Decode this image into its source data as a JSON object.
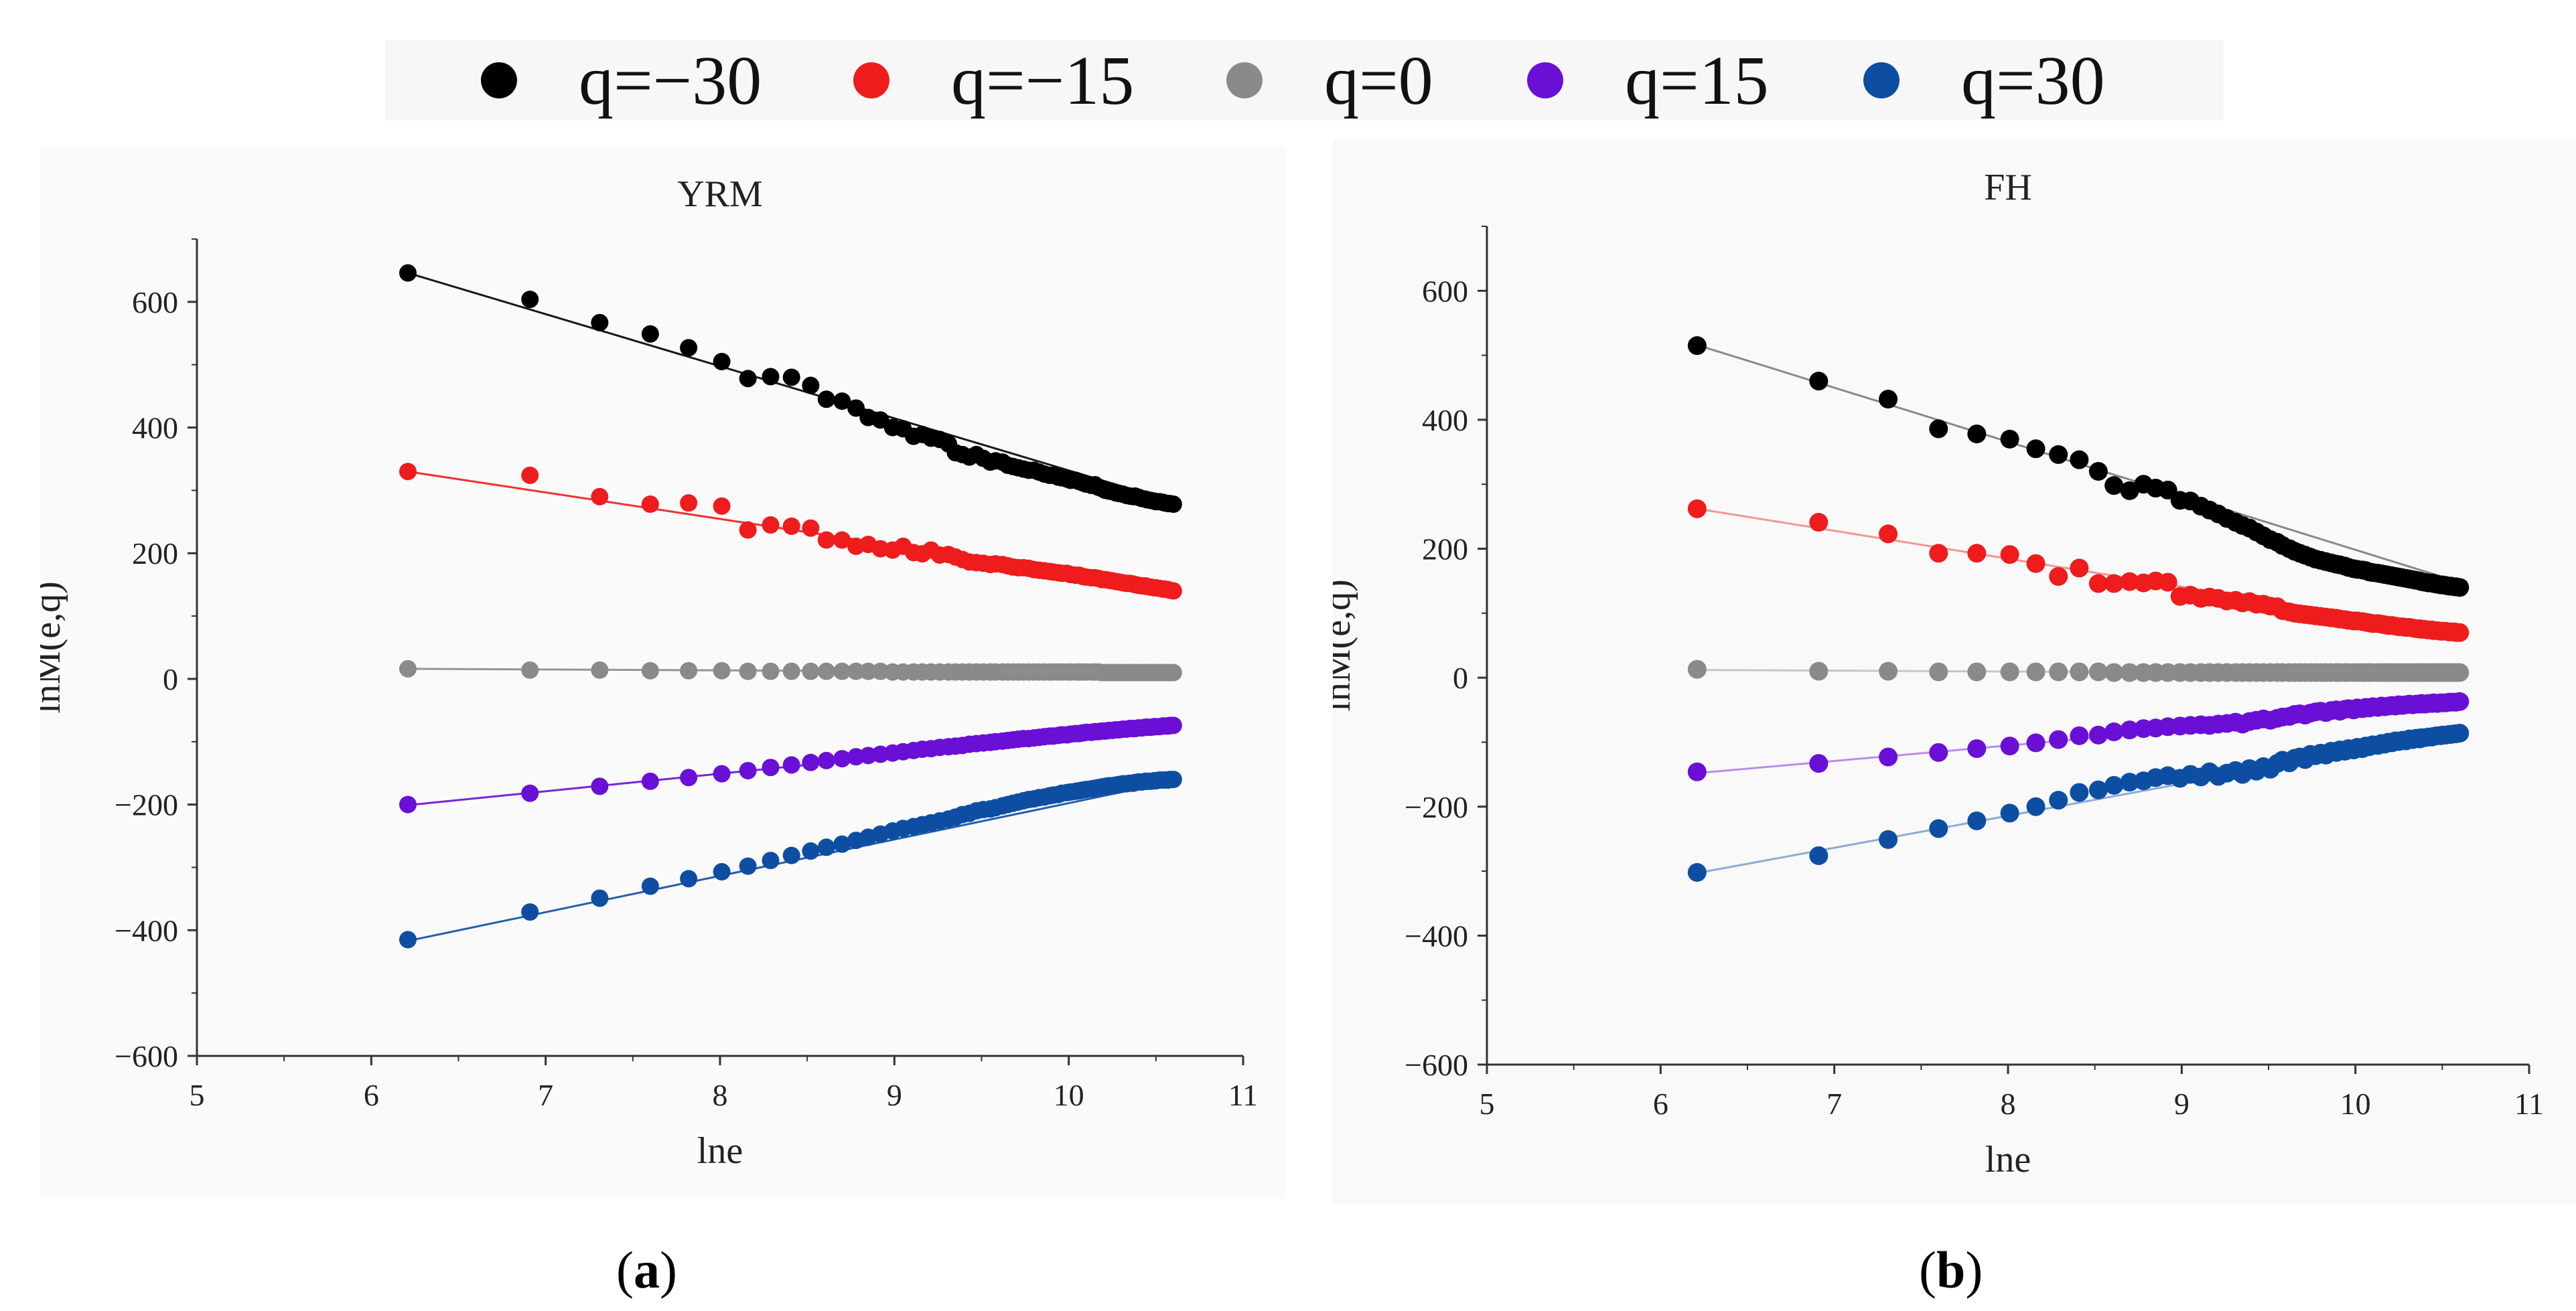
{
  "legend": {
    "items": [
      {
        "label": "q=−30",
        "color": "#000000"
      },
      {
        "label": "q=−15",
        "color": "#ee1c1c"
      },
      {
        "label": "q=0",
        "color": "#8a8a8a"
      },
      {
        "label": "q=15",
        "color": "#6a0fd6"
      },
      {
        "label": "q=30",
        "color": "#0d4ea3"
      }
    ]
  },
  "panels": [
    {
      "open": "(",
      "letter": "a",
      "close": ")"
    },
    {
      "open": "(",
      "letter": "b",
      "close": ")"
    }
  ],
  "chart_data": [
    {
      "type": "scatter",
      "title": "YRM",
      "xlabel": "lne",
      "ylabel": "lnM(e,q)",
      "xlim": [
        5,
        11
      ],
      "ylim": [
        -600,
        700
      ],
      "xticks": [
        5,
        6,
        7,
        8,
        9,
        10,
        11
      ],
      "yticks": [
        -600,
        -400,
        -200,
        0,
        200,
        400,
        600
      ],
      "ytick_labels": [
        "−600",
        "−400",
        "−200",
        "0",
        "200",
        "400",
        "600"
      ],
      "grid": false,
      "fit_lines": true,
      "x": [
        6.21,
        6.91,
        7.31,
        7.6,
        7.82,
        8.01,
        8.16,
        8.29,
        8.41,
        8.52,
        8.61,
        8.7,
        8.78,
        8.85,
        8.92,
        8.99,
        9.05,
        9.11,
        9.16,
        9.21,
        9.26,
        9.31,
        9.35,
        9.39,
        9.43,
        9.47,
        9.51,
        9.55,
        9.58,
        9.62,
        9.65,
        9.68,
        9.71,
        9.74,
        9.77,
        9.8,
        9.83,
        9.86,
        9.89,
        9.91,
        9.94,
        9.96,
        9.99,
        10.01,
        10.04,
        10.06,
        10.08,
        10.1,
        10.13,
        10.15,
        10.17,
        10.19,
        10.21,
        10.23,
        10.25,
        10.27,
        10.29,
        10.31,
        10.33,
        10.35,
        10.37,
        10.38,
        10.4,
        10.42,
        10.44,
        10.45,
        10.47,
        10.49,
        10.5,
        10.52,
        10.54,
        10.55,
        10.57,
        10.58,
        10.6
      ],
      "series": [
        {
          "name": "q=−30",
          "color": "#000000",
          "line": [
            [
              6.21,
              646
            ],
            [
              10.6,
              282
            ]
          ],
          "values": [
            646,
            604,
            567,
            549,
            527,
            505,
            478,
            481,
            480,
            467,
            445,
            442,
            431,
            416,
            412,
            400,
            398,
            386,
            389,
            383,
            381,
            374,
            360,
            357,
            353,
            357,
            351,
            345,
            347,
            345,
            340,
            338,
            336,
            334,
            332,
            332,
            329,
            326,
            324,
            324,
            321,
            320,
            318,
            316,
            316,
            314,
            312,
            310,
            308,
            309,
            305,
            303,
            300,
            299,
            298,
            296,
            295,
            294,
            292,
            291,
            290,
            291,
            289,
            287,
            286,
            285,
            284,
            283,
            282,
            282,
            281,
            280,
            279,
            279,
            278
          ]
        },
        {
          "name": "q=−15",
          "color": "#ee1c1c",
          "line": [
            [
              6.21,
              330
            ],
            [
              10.6,
              145
            ]
          ],
          "values": [
            330,
            324,
            290,
            278,
            280,
            275,
            237,
            245,
            243,
            240,
            221,
            221,
            211,
            214,
            207,
            205,
            211,
            201,
            199,
            205,
            197,
            198,
            194,
            190,
            186,
            185,
            184,
            182,
            183,
            182,
            180,
            178,
            177,
            177,
            176,
            174,
            173,
            172,
            171,
            170,
            169,
            168,
            168,
            166,
            165,
            165,
            163,
            162,
            161,
            161,
            160,
            158,
            158,
            157,
            156,
            155,
            154,
            153,
            152,
            152,
            151,
            150,
            149,
            148,
            148,
            147,
            146,
            145,
            145,
            144,
            143,
            143,
            142,
            141,
            140
          ]
        },
        {
          "name": "q=0",
          "color": "#8a8a8a",
          "line": [
            [
              6.21,
              16
            ],
            [
              10.6,
              10
            ]
          ],
          "values": [
            16,
            14,
            14,
            13,
            13,
            13,
            12,
            12,
            12,
            12,
            12,
            12,
            12,
            12,
            12,
            11,
            11,
            11,
            11,
            11,
            11,
            11,
            11,
            11,
            11,
            11,
            11,
            11,
            11,
            11,
            11,
            11,
            11,
            11,
            11,
            11,
            11,
            11,
            11,
            11,
            11,
            11,
            11,
            11,
            11,
            11,
            11,
            11,
            11,
            11,
            11,
            10,
            10,
            10,
            10,
            10,
            10,
            10,
            10,
            10,
            10,
            10,
            10,
            10,
            10,
            10,
            10,
            10,
            10,
            10,
            10,
            10,
            10,
            10,
            10
          ]
        },
        {
          "name": "q=15",
          "color": "#6a0fd6",
          "line": [
            [
              6.21,
              -201
            ],
            [
              10.6,
              -78
            ]
          ],
          "values": [
            -200,
            -182,
            -171,
            -163,
            -157,
            -151,
            -146,
            -141,
            -137,
            -133,
            -130,
            -127,
            -124,
            -122,
            -120,
            -118,
            -116,
            -114,
            -112,
            -111,
            -109,
            -108,
            -107,
            -106,
            -104,
            -103,
            -102,
            -101,
            -100,
            -99,
            -98,
            -97,
            -96,
            -95,
            -95,
            -94,
            -93,
            -92,
            -91,
            -91,
            -90,
            -89,
            -89,
            -88,
            -87,
            -87,
            -86,
            -85,
            -85,
            -84,
            -84,
            -83,
            -83,
            -82,
            -82,
            -81,
            -81,
            -80,
            -80,
            -79,
            -79,
            -79,
            -78,
            -78,
            -77,
            -77,
            -77,
            -76,
            -76,
            -76,
            -75,
            -75,
            -75,
            -74,
            -74
          ]
        },
        {
          "name": "q=30",
          "color": "#0d4ea3",
          "line": [
            [
              6.21,
              -417
            ],
            [
              10.6,
              -163
            ]
          ],
          "values": [
            -415,
            -371,
            -349,
            -330,
            -318,
            -307,
            -298,
            -289,
            -281,
            -274,
            -268,
            -263,
            -257,
            -252,
            -247,
            -242,
            -238,
            -235,
            -232,
            -229,
            -226,
            -223,
            -220,
            -216,
            -214,
            -210,
            -208,
            -207,
            -205,
            -202,
            -200,
            -198,
            -196,
            -194,
            -192,
            -191,
            -189,
            -188,
            -186,
            -185,
            -184,
            -182,
            -181,
            -180,
            -179,
            -178,
            -177,
            -176,
            -175,
            -174,
            -173,
            -172,
            -171,
            -170,
            -170,
            -169,
            -168,
            -167,
            -167,
            -166,
            -166,
            -165,
            -164,
            -164,
            -163,
            -163,
            -163,
            -162,
            -162,
            -161,
            -161,
            -161,
            -161,
            -160,
            -160
          ]
        }
      ]
    },
    {
      "type": "scatter",
      "title": "FH",
      "xlabel": "lne",
      "ylabel": "lnM(e,q)",
      "xlim": [
        5,
        11
      ],
      "ylim": [
        -600,
        700
      ],
      "xticks": [
        5,
        6,
        7,
        8,
        9,
        10,
        11
      ],
      "yticks": [
        -600,
        -400,
        -200,
        0,
        200,
        400,
        600
      ],
      "ytick_labels": [
        "−600",
        "−400",
        "−200",
        "0",
        "200",
        "400",
        "600"
      ],
      "grid": false,
      "fit_lines": true,
      "x": [
        6.21,
        6.91,
        7.31,
        7.6,
        7.82,
        8.01,
        8.16,
        8.29,
        8.41,
        8.52,
        8.61,
        8.7,
        8.78,
        8.85,
        8.92,
        8.99,
        9.05,
        9.11,
        9.16,
        9.21,
        9.26,
        9.31,
        9.35,
        9.39,
        9.43,
        9.47,
        9.51,
        9.55,
        9.58,
        9.62,
        9.65,
        9.68,
        9.71,
        9.74,
        9.77,
        9.8,
        9.83,
        9.86,
        9.89,
        9.91,
        9.94,
        9.96,
        9.99,
        10.01,
        10.04,
        10.06,
        10.08,
        10.1,
        10.13,
        10.15,
        10.17,
        10.19,
        10.21,
        10.23,
        10.25,
        10.27,
        10.29,
        10.31,
        10.33,
        10.35,
        10.37,
        10.38,
        10.4,
        10.42,
        10.44,
        10.45,
        10.47,
        10.49,
        10.5,
        10.52,
        10.54,
        10.55,
        10.57,
        10.58,
        10.6
      ],
      "series": [
        {
          "name": "q=−30",
          "color": "#000000",
          "line": [
            [
              6.21,
              516
            ],
            [
              10.6,
              148
            ]
          ],
          "values": [
            515,
            460,
            432,
            386,
            378,
            370,
            355,
            346,
            338,
            320,
            298,
            290,
            300,
            294,
            291,
            275,
            274,
            266,
            260,
            254,
            247,
            241,
            236,
            232,
            226,
            220,
            214,
            210,
            205,
            200,
            196,
            193,
            190,
            187,
            184,
            182,
            180,
            178,
            176,
            175,
            173,
            171,
            169,
            168,
            167,
            166,
            164,
            163,
            162,
            161,
            160,
            159,
            158,
            157,
            156,
            155,
            154,
            153,
            152,
            151,
            150,
            149,
            148,
            147,
            147,
            146,
            145,
            144,
            144,
            143,
            142,
            142,
            141,
            141,
            140
          ]
        },
        {
          "name": "q=−15",
          "color": "#ee1c1c",
          "line": [
            [
              6.21,
              262
            ],
            [
              10.6,
              72
            ]
          ],
          "values": [
            262,
            241,
            223,
            193,
            193,
            191,
            177,
            157,
            170,
            146,
            146,
            149,
            147,
            150,
            148,
            126,
            128,
            123,
            125,
            123,
            119,
            120,
            116,
            118,
            114,
            114,
            111,
            110,
            104,
            102,
            100,
            99,
            98,
            97,
            96,
            95,
            94,
            93,
            92,
            91,
            90,
            89,
            88,
            88,
            87,
            86,
            85,
            84,
            84,
            83,
            82,
            81,
            81,
            80,
            79,
            79,
            78,
            78,
            77,
            76,
            76,
            75,
            75,
            74,
            74,
            73,
            73,
            72,
            72,
            72,
            71,
            71,
            71,
            70,
            70
          ]
        },
        {
          "name": "q=0",
          "color": "#8a8a8a",
          "line": [
            [
              6.21,
              12
            ],
            [
              10.6,
              6
            ]
          ],
          "values": [
            13,
            10,
            10,
            9,
            9,
            9,
            9,
            9,
            9,
            9,
            8,
            8,
            8,
            8,
            8,
            8,
            8,
            8,
            8,
            8,
            8,
            8,
            8,
            8,
            8,
            8,
            8,
            8,
            8,
            8,
            8,
            8,
            8,
            8,
            8,
            8,
            8,
            8,
            8,
            8,
            8,
            8,
            8,
            8,
            8,
            8,
            8,
            8,
            8,
            8,
            8,
            8,
            8,
            8,
            8,
            8,
            8,
            8,
            8,
            8,
            8,
            8,
            8,
            8,
            8,
            8,
            8,
            8,
            8,
            8,
            8,
            8,
            8,
            8,
            8
          ]
        },
        {
          "name": "q=15",
          "color": "#6a0fd6",
          "line": [
            [
              6.21,
              -148
            ],
            [
              10.6,
              -43
            ]
          ],
          "values": [
            -146,
            -133,
            -123,
            -116,
            -110,
            -106,
            -101,
            -96,
            -90,
            -89,
            -84,
            -81,
            -79,
            -78,
            -76,
            -75,
            -74,
            -73,
            -74,
            -72,
            -71,
            -69,
            -72,
            -68,
            -66,
            -64,
            -66,
            -63,
            -61,
            -60,
            -57,
            -56,
            -58,
            -55,
            -53,
            -52,
            -54,
            -51,
            -50,
            -52,
            -49,
            -48,
            -50,
            -47,
            -48,
            -46,
            -47,
            -45,
            -46,
            -44,
            -45,
            -44,
            -43,
            -44,
            -42,
            -43,
            -42,
            -41,
            -42,
            -41,
            -41,
            -40,
            -41,
            -40,
            -40,
            -39,
            -40,
            -39,
            -39,
            -39,
            -38,
            -38,
            -38,
            -38,
            -37
          ]
        },
        {
          "name": "q=30",
          "color": "#0d4ea3",
          "line": [
            [
              6.21,
              -303
            ],
            [
              10.6,
              -85
            ]
          ],
          "values": [
            -302,
            -276,
            -251,
            -234,
            -222,
            -210,
            -200,
            -190,
            -178,
            -174,
            -167,
            -162,
            -160,
            -155,
            -152,
            -156,
            -150,
            -154,
            -146,
            -153,
            -148,
            -144,
            -150,
            -141,
            -145,
            -138,
            -142,
            -133,
            -128,
            -132,
            -125,
            -123,
            -127,
            -119,
            -121,
            -117,
            -120,
            -114,
            -116,
            -112,
            -114,
            -110,
            -112,
            -108,
            -110,
            -106,
            -107,
            -104,
            -105,
            -102,
            -103,
            -100,
            -101,
            -98,
            -99,
            -97,
            -98,
            -95,
            -96,
            -94,
            -95,
            -93,
            -93,
            -92,
            -92,
            -91,
            -90,
            -90,
            -89,
            -89,
            -88,
            -88,
            -87,
            -87,
            -86
          ]
        }
      ]
    }
  ]
}
